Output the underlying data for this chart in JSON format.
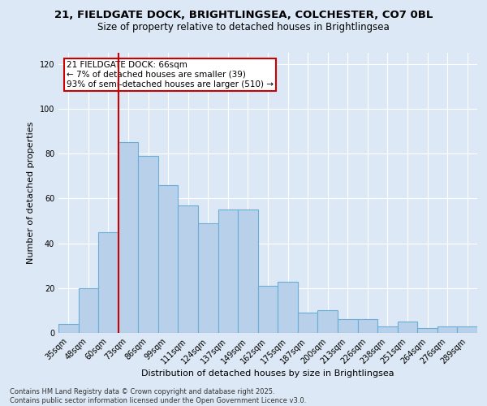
{
  "title_line1": "21, FIELDGATE DOCK, BRIGHTLINGSEA, COLCHESTER, CO7 0BL",
  "title_line2": "Size of property relative to detached houses in Brightlingsea",
  "xlabel": "Distribution of detached houses by size in Brightlingsea",
  "ylabel": "Number of detached properties",
  "categories": [
    "35sqm",
    "48sqm",
    "60sqm",
    "73sqm",
    "86sqm",
    "99sqm",
    "111sqm",
    "124sqm",
    "137sqm",
    "149sqm",
    "162sqm",
    "175sqm",
    "187sqm",
    "200sqm",
    "213sqm",
    "226sqm",
    "238sqm",
    "251sqm",
    "264sqm",
    "276sqm",
    "289sqm"
  ],
  "values": [
    4,
    20,
    45,
    85,
    79,
    66,
    57,
    49,
    55,
    55,
    21,
    23,
    9,
    10,
    6,
    6,
    3,
    5,
    2,
    3,
    3
  ],
  "bar_color": "#b8d0ea",
  "bar_edge_color": "#6aaed6",
  "vline_x_index": 2,
  "vline_color": "#cc0000",
  "annotation_text": "21 FIELDGATE DOCK: 66sqm\n← 7% of detached houses are smaller (39)\n93% of semi-detached houses are larger (510) →",
  "annotation_box_color": "#ffffff",
  "annotation_box_edge_color": "#cc0000",
  "background_color": "#dce8f5",
  "grid_color": "#ffffff",
  "ylim": [
    0,
    125
  ],
  "yticks": [
    0,
    20,
    40,
    60,
    80,
    100,
    120
  ],
  "footer_text": "Contains HM Land Registry data © Crown copyright and database right 2025.\nContains public sector information licensed under the Open Government Licence v3.0.",
  "title_fontsize": 9.5,
  "subtitle_fontsize": 8.5,
  "axis_label_fontsize": 8,
  "tick_fontsize": 7,
  "annotation_fontsize": 7.5,
  "footer_fontsize": 6
}
